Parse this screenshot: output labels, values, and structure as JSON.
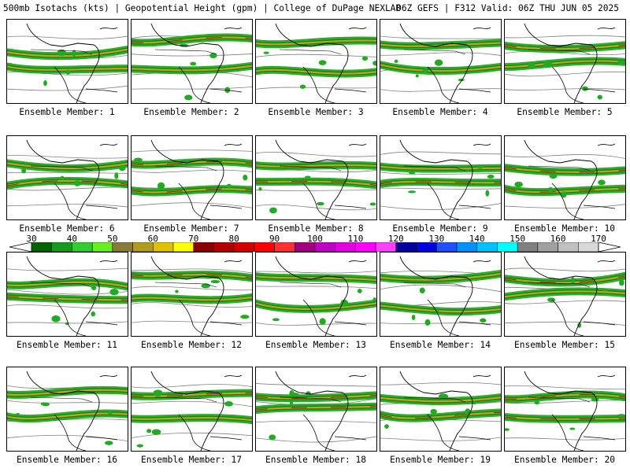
{
  "header": {
    "left": "500mb Isotachs (kts) | Geopotential Height (gpm) | College of DuPage NEXLAB",
    "right": "06Z GEFS | F312 Valid: 06Z THU JUN 05 2025"
  },
  "members": [
    "Ensemble Member: 1",
    "Ensemble Member: 2",
    "Ensemble Member: 3",
    "Ensemble Member: 4",
    "Ensemble Member: 5",
    "Ensemble Member: 6",
    "Ensemble Member: 7",
    "Ensemble Member: 8",
    "Ensemble Member: 9",
    "Ensemble Member: 10",
    "Ensemble Member: 11",
    "Ensemble Member: 12",
    "Ensemble Member: 13",
    "Ensemble Member: 14",
    "Ensemble Member: 15",
    "Ensemble Member: 16",
    "Ensemble Member: 17",
    "Ensemble Member: 18",
    "Ensemble Member: 19",
    "Ensemble Member: 20"
  ],
  "colorbar": {
    "labels": [
      "30",
      "40",
      "50",
      "60",
      "70",
      "80",
      "90",
      "100",
      "110",
      "120",
      "130",
      "140",
      "150",
      "160",
      "170"
    ],
    "colors": [
      "#006400",
      "#1a9a1a",
      "#33cc33",
      "#66ee22",
      "#8a7a3a",
      "#b09a20",
      "#e0c000",
      "#ffff00",
      "#8b0000",
      "#b00000",
      "#d40000",
      "#ff0000",
      "#ff3030",
      "#a00080",
      "#c000c0",
      "#e000e0",
      "#ff00ff",
      "#ff40ff",
      "#0000a0",
      "#0000e0",
      "#2050ff",
      "#0090ff",
      "#00c0ff",
      "#00ffff",
      "#808080",
      "#a0a0a0",
      "#c0c0c0",
      "#d8d8d8"
    ]
  },
  "map_colors": {
    "jet_core": "#8b2500",
    "jet_mid": "#c8a020",
    "jet_outer": "#22aa22",
    "contour": "#808080",
    "coast": "#000000"
  }
}
